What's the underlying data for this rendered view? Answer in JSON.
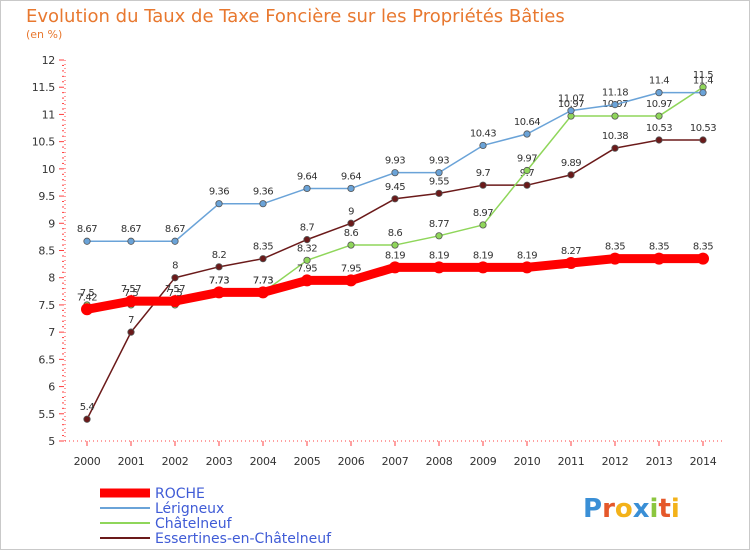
{
  "chart_data": {
    "type": "line",
    "title": "Evolution du Taux de Taxe Foncière sur les Propriétés Bâties",
    "subtitle": "(en %)",
    "x": [
      "2000",
      "2001",
      "2002",
      "2003",
      "2004",
      "2005",
      "2006",
      "2007",
      "2008",
      "2009",
      "2010",
      "2011",
      "2012",
      "2013",
      "2014"
    ],
    "ylim": [
      5,
      12
    ],
    "yticks": [
      "5",
      "5.5",
      "6",
      "6.5",
      "7",
      "7.5",
      "8",
      "8.5",
      "9",
      "9.5",
      "10",
      "10.5",
      "11",
      "11.5",
      "12"
    ],
    "grid": false,
    "legend_position": "bottom-left",
    "series": [
      {
        "name": "ROCHE",
        "color": "#ff0000",
        "values": [
          7.42,
          7.57,
          7.57,
          7.73,
          7.73,
          7.95,
          7.95,
          8.19,
          8.19,
          8.19,
          8.19,
          8.27,
          8.35,
          8.35,
          8.35
        ],
        "labels": [
          "7.42",
          "7.57",
          "7.57",
          "7.73",
          "7.73",
          "7.95",
          "7.95",
          "8.19",
          "8.19",
          "8.19",
          "8.19",
          "8.27",
          "8.35",
          "8.35",
          "8.35"
        ]
      },
      {
        "name": "Lérigneux",
        "color": "#6aa3d8",
        "values": [
          8.67,
          8.67,
          8.67,
          9.36,
          9.36,
          9.64,
          9.64,
          9.93,
          9.93,
          10.43,
          10.64,
          11.07,
          11.18,
          11.4,
          11.4
        ],
        "labels": [
          "8.67",
          "8.67",
          "8.67",
          "9.36",
          "9.36",
          "9.64",
          "9.64",
          "9.93",
          "9.93",
          "10.43",
          "10.64",
          "11.07",
          "11.18",
          "11.4",
          "11.4"
        ]
      },
      {
        "name": "Châtelneuf",
        "color": "#8fd65a",
        "values": [
          7.5,
          7.5,
          7.5,
          7.73,
          7.73,
          8.32,
          8.6,
          8.6,
          8.77,
          8.97,
          9.97,
          10.97,
          10.97,
          10.97,
          11.5
        ],
        "labels": [
          "7.5",
          "7.5",
          "7.5",
          "7.73",
          "7.73",
          "8.32",
          "8.6",
          "8.6",
          "8.77",
          "8.97",
          "9.97",
          "10.97",
          "10.97",
          "10.97",
          "11.5"
        ]
      },
      {
        "name": "Essertines-en-Châtelneuf",
        "color": "#6b1a1a",
        "values": [
          5.4,
          7,
          8,
          8.2,
          8.35,
          8.7,
          9,
          9.45,
          9.55,
          9.7,
          9.7,
          9.89,
          10.38,
          10.53,
          10.53
        ],
        "labels": [
          "5.4",
          "7",
          "8",
          "8.2",
          "8.35",
          "8.7",
          "9",
          "9.45",
          "9.55",
          "9.7",
          "9.7",
          "9.89",
          "10.38",
          "10.53",
          "10.53"
        ]
      }
    ]
  },
  "brand": {
    "letters": [
      "P",
      "r",
      "o",
      "x",
      "i",
      "t",
      "i"
    ],
    "colors": [
      "#3a8fd6",
      "#e5582a",
      "#f3b21a",
      "#3a8fd6",
      "#8cc63f",
      "#e5582a",
      "#f3b21a"
    ]
  }
}
